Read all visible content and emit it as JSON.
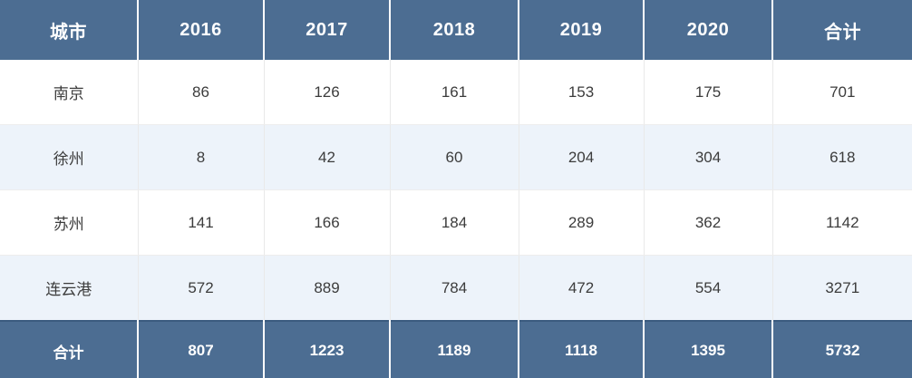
{
  "colors": {
    "header_bg": "#4c6d92",
    "footer_bg": "#4c6d92",
    "stripe_bg": "#edf3fa",
    "row_bg": "#ffffff",
    "dark_border": "#3b5b7f",
    "cell_border": "#e9e9e9",
    "header_text": "#ffffff",
    "body_text": "#3c3c3c"
  },
  "chart_data": {
    "type": "table",
    "columns": [
      "城市",
      "2016",
      "2017",
      "2018",
      "2019",
      "2020",
      "合计"
    ],
    "rows": [
      [
        "南京",
        86,
        126,
        161,
        153,
        175,
        701
      ],
      [
        "徐州",
        8,
        42,
        60,
        204,
        304,
        618
      ],
      [
        "苏州",
        141,
        166,
        184,
        289,
        362,
        1142
      ],
      [
        "连云港",
        572,
        889,
        784,
        472,
        554,
        3271
      ]
    ],
    "footer": [
      "合计",
      807,
      1223,
      1189,
      1118,
      1395,
      5732
    ],
    "layout_hints": {
      "header_style": "dark slate blue band, white bold text",
      "footer_style": "dark slate blue band, white bold text, dark navy top/bottom rules",
      "zebra_striping": "even body rows light blue",
      "grid": "thin light-gray column/row separators in body, white separators in header/footer"
    }
  }
}
